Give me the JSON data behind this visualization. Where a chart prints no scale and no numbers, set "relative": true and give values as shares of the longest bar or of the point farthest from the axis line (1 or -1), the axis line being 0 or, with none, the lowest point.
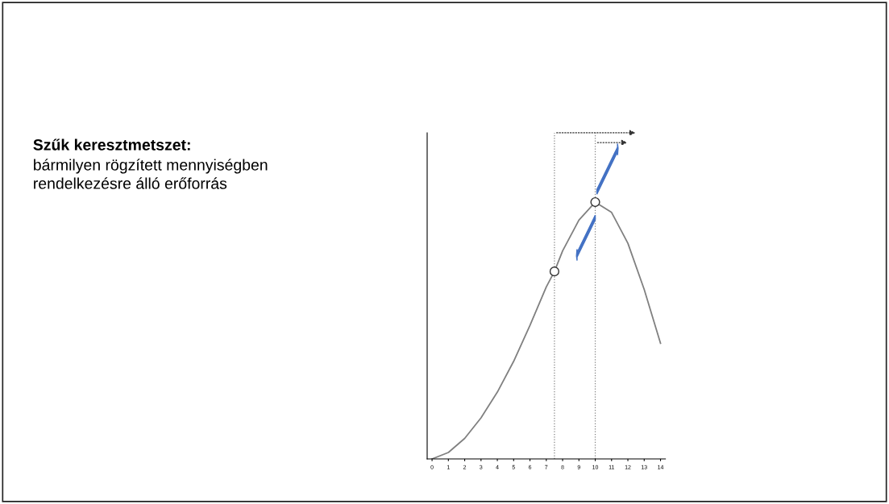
{
  "chart_data": {
    "type": "line",
    "title": "Szűk keresztmetszet:",
    "subtitle": "bármilyen rögzített mennyiségben\nrendelkezésre álló erőforrás",
    "relative": true,
    "tick_labels": "x",
    "xlim": [
      -0.3,
      14.3
    ],
    "xticks": [
      0,
      1,
      2,
      3,
      4,
      5,
      6,
      7,
      8,
      9,
      10,
      11,
      12,
      13,
      14
    ],
    "x": [
      0,
      1,
      2,
      3,
      4,
      5,
      6,
      7,
      7.5,
      8,
      9,
      10,
      11,
      12,
      13,
      14
    ],
    "series": [
      {
        "color": "#808080",
        "marker": "none",
        "line_style": "solid",
        "values": [
          0,
          0.025,
          0.08,
          0.16,
          0.26,
          0.38,
          0.52,
          0.67,
          0.73,
          0.81,
          0.93,
          1,
          0.96,
          0.84,
          0.66,
          0.45
        ]
      },
      {
        "type": "scatter",
        "x": [
          7.5,
          10
        ],
        "color": "#ffffff",
        "marker": "circle",
        "values": [
          0.73,
          1
        ]
      }
    ],
    "ref_lines": [
      {
        "axis": "x",
        "value": 7.5,
        "color": "#808080",
        "line_style": "dotted"
      },
      {
        "axis": "x",
        "value": 10,
        "color": "#808080",
        "line_style": "dotted"
      }
    ]
  }
}
